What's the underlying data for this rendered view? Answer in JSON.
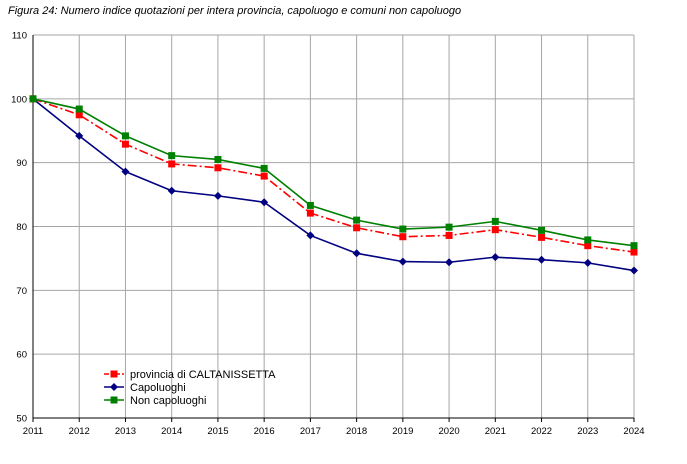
{
  "figure_title": "Figura 24: Numero indice quotazioni per intera provincia, capoluogo e comuni non capoluogo",
  "chart_data": {
    "type": "line",
    "x": [
      2011,
      2012,
      2013,
      2014,
      2015,
      2016,
      2017,
      2018,
      2019,
      2020,
      2021,
      2022,
      2023,
      2024
    ],
    "ylim": [
      50,
      110
    ],
    "yticks": [
      50,
      60,
      70,
      80,
      90,
      100,
      110
    ],
    "grid": true,
    "legend_position": "bottom-left",
    "series": [
      {
        "name": "provincia di CALTANISSETTA",
        "color": "#ff0000",
        "marker": "square",
        "dash": "dash-dot",
        "values": [
          100,
          97.5,
          92.9,
          89.8,
          89.2,
          87.9,
          82.1,
          79.8,
          78.4,
          78.6,
          79.5,
          78.3,
          77.0,
          76.0
        ]
      },
      {
        "name": "Capoluoghi",
        "color": "#000080",
        "marker": "diamond",
        "dash": "solid",
        "values": [
          100,
          94.2,
          88.6,
          85.6,
          84.8,
          83.8,
          78.6,
          75.8,
          74.5,
          74.4,
          75.2,
          74.8,
          74.3,
          73.1
        ]
      },
      {
        "name": "Non capoluoghi",
        "color": "#008000",
        "marker": "square",
        "dash": "solid",
        "values": [
          100,
          98.4,
          94.2,
          91.1,
          90.5,
          89.1,
          83.3,
          81.0,
          79.6,
          79.9,
          80.8,
          79.4,
          77.9,
          77.0
        ]
      }
    ]
  }
}
